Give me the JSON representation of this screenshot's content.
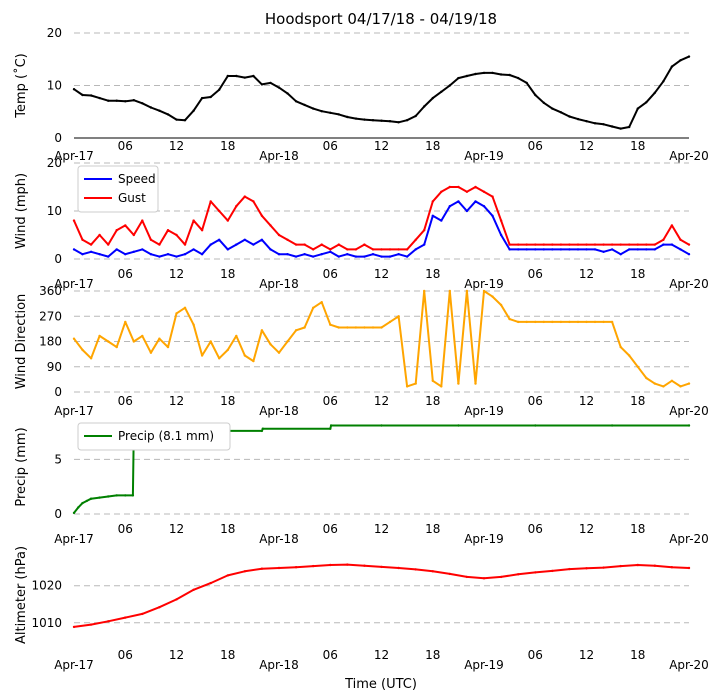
{
  "title": "Hoodsport 04/17/18 - 04/19/18",
  "xlabel": "Time (UTC)",
  "x_tick_labels": [
    "Apr-17",
    "06",
    "12",
    "18",
    "Apr-18",
    "06",
    "12",
    "18",
    "Apr-19",
    "06",
    "12",
    "18",
    "Apr-20"
  ],
  "x_range_hours": [
    0,
    72
  ],
  "chart_data": [
    {
      "type": "line",
      "ylabel": "Temp ($^\\circ$C)",
      "ylabel_display": "Temp (˚C)",
      "ylim": [
        0,
        20
      ],
      "yticks": [
        0,
        10,
        20
      ],
      "series": [
        {
          "name": "Temp",
          "color": "#000000",
          "x": [
            0,
            1,
            2,
            3,
            4,
            5,
            6,
            7,
            8,
            9,
            10,
            11,
            12,
            13,
            14,
            15,
            16,
            17,
            18,
            19,
            20,
            21,
            22,
            23,
            24,
            25,
            26,
            27,
            28,
            29,
            30,
            31,
            32,
            33,
            34,
            35,
            36,
            37,
            38,
            39,
            40,
            41,
            42,
            43,
            44,
            45,
            46,
            47,
            48,
            49,
            50,
            51,
            52,
            53,
            54,
            55,
            56,
            57,
            58,
            59,
            60,
            61,
            62,
            63,
            64,
            65,
            66,
            67,
            68,
            69,
            70,
            71,
            72
          ],
          "values": [
            9.3,
            8.2,
            8.1,
            7.6,
            7.1,
            7.1,
            7.0,
            7.2,
            6.6,
            5.8,
            5.2,
            4.5,
            3.5,
            3.4,
            5.2,
            7.6,
            7.8,
            9.2,
            11.8,
            11.8,
            11.5,
            11.8,
            10.2,
            10.5,
            9.6,
            8.5,
            7.0,
            6.3,
            5.6,
            5.1,
            4.8,
            4.5,
            4.0,
            3.7,
            3.5,
            3.4,
            3.3,
            3.2,
            3.0,
            3.4,
            4.2,
            6.0,
            7.6,
            8.8,
            10.0,
            11.4,
            11.8,
            12.2,
            12.4,
            12.4,
            12.1,
            12.0,
            11.4,
            10.5,
            8.2,
            6.7,
            5.6,
            4.9,
            4.1,
            3.6,
            3.2,
            2.8,
            2.6,
            2.2,
            1.8,
            2.1,
            5.6,
            6.8,
            8.6,
            10.8,
            13.6,
            14.8,
            15.5
          ]
        }
      ]
    },
    {
      "type": "line",
      "ylabel": "Wind (mph)",
      "ylim": [
        0,
        20
      ],
      "yticks": [
        0,
        10,
        20
      ],
      "legend": "top-left",
      "series": [
        {
          "name": "Speed",
          "color": "#0000ff",
          "x": [
            0,
            1,
            2,
            3,
            4,
            5,
            6,
            7,
            8,
            9,
            10,
            11,
            12,
            13,
            14,
            15,
            16,
            17,
            18,
            19,
            20,
            21,
            22,
            23,
            24,
            25,
            26,
            27,
            28,
            29,
            30,
            31,
            32,
            33,
            34,
            35,
            36,
            37,
            38,
            39,
            40,
            41,
            42,
            43,
            44,
            45,
            46,
            47,
            48,
            49,
            50,
            51,
            52,
            53,
            54,
            55,
            56,
            57,
            58,
            59,
            60,
            61,
            62,
            63,
            64,
            65,
            66,
            67,
            68,
            69,
            70,
            71,
            72
          ],
          "values": [
            2,
            1,
            1.5,
            1,
            0.5,
            2,
            1,
            1.5,
            2,
            1,
            0.5,
            1,
            0.5,
            1,
            2,
            1,
            3,
            4,
            2,
            3,
            4,
            3,
            4,
            2,
            1,
            1,
            0.5,
            1,
            0.5,
            1,
            1.5,
            0.5,
            1,
            0.5,
            0.5,
            1,
            0.5,
            0.5,
            1,
            0.5,
            2,
            3,
            9,
            8,
            11,
            12,
            10,
            12,
            11,
            9,
            5,
            2,
            2,
            2,
            2,
            2,
            2,
            2,
            2,
            2,
            2,
            2,
            1.5,
            2,
            1,
            2,
            2,
            2,
            2,
            3,
            3,
            2,
            1
          ]
        },
        {
          "name": "Gust",
          "color": "#ff0000",
          "x": [
            0,
            1,
            2,
            3,
            4,
            5,
            6,
            7,
            8,
            9,
            10,
            11,
            12,
            13,
            14,
            15,
            16,
            17,
            18,
            19,
            20,
            21,
            22,
            23,
            24,
            25,
            26,
            27,
            28,
            29,
            30,
            31,
            32,
            33,
            34,
            35,
            36,
            37,
            38,
            39,
            40,
            41,
            42,
            43,
            44,
            45,
            46,
            47,
            48,
            49,
            50,
            51,
            52,
            53,
            54,
            55,
            56,
            57,
            58,
            59,
            60,
            61,
            62,
            63,
            64,
            65,
            66,
            67,
            68,
            69,
            70,
            71,
            72
          ],
          "values": [
            8,
            4,
            3,
            5,
            3,
            6,
            7,
            5,
            8,
            4,
            3,
            6,
            5,
            3,
            8,
            6,
            12,
            10,
            8,
            11,
            13,
            12,
            9,
            7,
            5,
            4,
            3,
            3,
            2,
            3,
            2,
            3,
            2,
            2,
            3,
            2,
            2,
            2,
            2,
            2,
            4,
            6,
            12,
            14,
            15,
            15,
            14,
            15,
            14,
            13,
            8,
            3,
            3,
            3,
            3,
            3,
            3,
            3,
            3,
            3,
            3,
            3,
            3,
            3,
            3,
            3,
            3,
            3,
            3,
            4,
            7,
            4,
            3
          ]
        }
      ]
    },
    {
      "type": "line",
      "ylabel": "Wind Direction",
      "ylim": [
        0,
        360
      ],
      "yticks": [
        0,
        90,
        180,
        270,
        360
      ],
      "series": [
        {
          "name": "Direction",
          "color": "#ffa500",
          "x": [
            0,
            1,
            2,
            3,
            4,
            5,
            6,
            7,
            8,
            9,
            10,
            11,
            12,
            13,
            14,
            15,
            16,
            17,
            18,
            19,
            20,
            21,
            22,
            23,
            24,
            25,
            26,
            27,
            28,
            29,
            30,
            31,
            32,
            33,
            34,
            35,
            36,
            37,
            38,
            39,
            40,
            41,
            42,
            43,
            44,
            45,
            46,
            47,
            48,
            49,
            50,
            51,
            52,
            53,
            54,
            55,
            56,
            57,
            58,
            59,
            60,
            61,
            62,
            63,
            64,
            65,
            66,
            67,
            68,
            69,
            70,
            71,
            72
          ],
          "values": [
            190,
            150,
            120,
            200,
            180,
            160,
            250,
            180,
            200,
            140,
            190,
            160,
            280,
            300,
            240,
            130,
            180,
            120,
            150,
            200,
            130,
            110,
            220,
            170,
            140,
            180,
            220,
            230,
            300,
            320,
            240,
            230,
            230,
            230,
            230,
            230,
            230,
            250,
            270,
            20,
            30,
            360,
            40,
            20,
            360,
            30,
            360,
            30,
            360,
            340,
            310,
            260,
            250,
            250,
            250,
            250,
            250,
            250,
            250,
            250,
            250,
            250,
            250,
            250,
            160,
            130,
            90,
            50,
            30,
            20,
            40,
            20,
            30
          ]
        }
      ]
    },
    {
      "type": "line",
      "ylabel": "Precip (mm)",
      "ylim": [
        0,
        8.6
      ],
      "yticks": [
        0,
        5
      ],
      "legend": "top-left",
      "series": [
        {
          "name": "Precip (8.1 mm)",
          "color": "#008000",
          "x": [
            0,
            0.5,
            1,
            1.5,
            2,
            3,
            4,
            5,
            6,
            6.9,
            7,
            12,
            18,
            22,
            22.1,
            30,
            30.1,
            36,
            45,
            54,
            63,
            72
          ],
          "values": [
            0.1,
            0.6,
            1.0,
            1.2,
            1.4,
            1.5,
            1.6,
            1.7,
            1.7,
            1.7,
            7.6,
            7.6,
            7.6,
            7.6,
            7.8,
            7.8,
            8.1,
            8.1,
            8.1,
            8.1,
            8.1,
            8.1
          ]
        }
      ]
    },
    {
      "type": "line",
      "ylabel": "Altimeter (hPa)",
      "ylim": [
        1004,
        1031
      ],
      "yticks": [
        1010,
        1020
      ],
      "series": [
        {
          "name": "Altimeter",
          "color": "#ff0000",
          "x": [
            0,
            2,
            4,
            6,
            8,
            10,
            12,
            14,
            16,
            18,
            20,
            22,
            24,
            26,
            28,
            30,
            32,
            34,
            36,
            38,
            40,
            42,
            44,
            46,
            48,
            50,
            52,
            54,
            56,
            58,
            60,
            62,
            64,
            66,
            68,
            70,
            72
          ],
          "values": [
            1008.9,
            1009.5,
            1010.4,
            1011.4,
            1012.4,
            1014.2,
            1016.3,
            1018.9,
            1020.7,
            1022.8,
            1023.9,
            1024.6,
            1024.8,
            1025.0,
            1025.3,
            1025.6,
            1025.7,
            1025.4,
            1025.1,
            1024.8,
            1024.4,
            1023.9,
            1023.2,
            1022.4,
            1022.0,
            1022.4,
            1023.1,
            1023.6,
            1024.0,
            1024.5,
            1024.7,
            1024.9,
            1025.3,
            1025.6,
            1025.4,
            1025.0,
            1024.8
          ]
        }
      ]
    }
  ]
}
